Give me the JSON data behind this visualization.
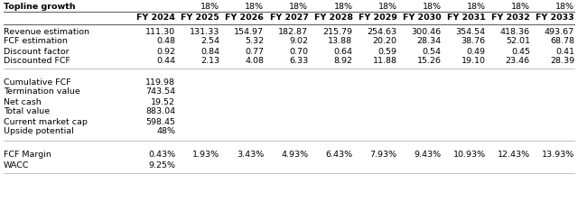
{
  "title": "Topline growth",
  "growth_rate": "18%",
  "years": [
    "FY 2024",
    "FY 2025",
    "FY 2026",
    "FY 2027",
    "FY 2028",
    "FY 2029",
    "FY 2030",
    "FY 2031",
    "FY 2032",
    "FY 2033"
  ],
  "revenue_estimation": [
    "111.30",
    "131.33",
    "154.97",
    "182.87",
    "215.79",
    "254.63",
    "300.46",
    "354.54",
    "418.36",
    "493.67"
  ],
  "fcf_estimation": [
    "0.48",
    "2.54",
    "5.32",
    "9.02",
    "13.88",
    "20.20",
    "28.34",
    "38.76",
    "52.01",
    "68.78"
  ],
  "discount_factor": [
    "0.92",
    "0.84",
    "0.77",
    "0.70",
    "0.64",
    "0.59",
    "0.54",
    "0.49",
    "0.45",
    "0.41"
  ],
  "discounted_fcf": [
    "0.44",
    "2.13",
    "4.08",
    "6.33",
    "8.92",
    "11.88",
    "15.26",
    "19.10",
    "23.46",
    "28.39"
  ],
  "cumulative_fcf": "119.98",
  "termination_value": "743.54",
  "net_cash": "19.52",
  "total_value": "883.04",
  "current_market_cap": "598.45",
  "upside_potential": "48%",
  "fcf_margin": [
    "0.43%",
    "1.93%",
    "3.43%",
    "4.93%",
    "6.43%",
    "7.93%",
    "9.43%",
    "10.93%",
    "12.43%",
    "13.93%"
  ],
  "wacc": "9.25%",
  "bg_color": "#ffffff",
  "text_color": "#000000",
  "line_color": "#aaaaaa",
  "bold_line_color": "#666666",
  "font_size": 6.8
}
